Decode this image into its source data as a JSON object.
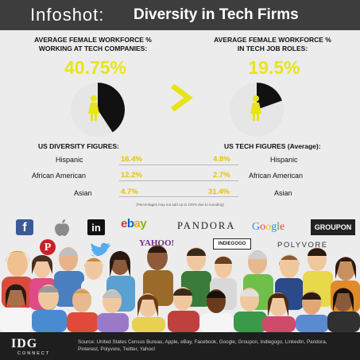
{
  "header": {
    "brand": "Infoshot:",
    "title": "Diversity in Tech Firms"
  },
  "left_stat": {
    "label_line1": "AVERAGE FEMALE WORKFORCE %",
    "label_line2": "WORKING AT TECH COMPANIES:",
    "value": "40.75%",
    "fraction": 0.4075
  },
  "right_stat": {
    "label_line1": "AVERAGE FEMALE WORKFORCE %",
    "label_line2": "IN TECH JOB ROLES:",
    "value": "19.5%",
    "fraction": 0.195
  },
  "colors": {
    "accent": "#e8e41a",
    "header_bg": "#3d3d3d",
    "pie_bg": "#e6e6e6",
    "pie_fill": "#111111",
    "footer_bg": "#1e1e1e"
  },
  "diversity": {
    "left_title": "US DIVERSITY FIGURES:",
    "right_title": "US TECH FIGURES (Average):",
    "rows": [
      {
        "label": "Hispanic",
        "us": "16.4%",
        "tech": "4.8%"
      },
      {
        "label": "African American",
        "us": "12.2%",
        "tech": "2.7%"
      },
      {
        "label": "Asian",
        "us": "4.7%",
        "tech": "31.4%"
      }
    ],
    "note": "(Percentages may not add up to 100% due to rounding)"
  },
  "logos": {
    "facebook": "f",
    "linkedin": "in",
    "ebay": "ebay",
    "pandora": "PANDORA",
    "google": "Google",
    "groupon": "GROUPON",
    "yahoo": "YAHOO!",
    "indiegogo": "INDIEGOGO",
    "polyvore": "POLYVORE"
  },
  "footer": {
    "idg": "IDG",
    "connect": "CONNECT",
    "source": "Source: United States Census Bureau, Apple, eBay, Facebook, Google, Groupon, Indiegogo, LinkedIn, Pandora, Pinterest, Polyvore, Twitter, Yahoo!"
  }
}
